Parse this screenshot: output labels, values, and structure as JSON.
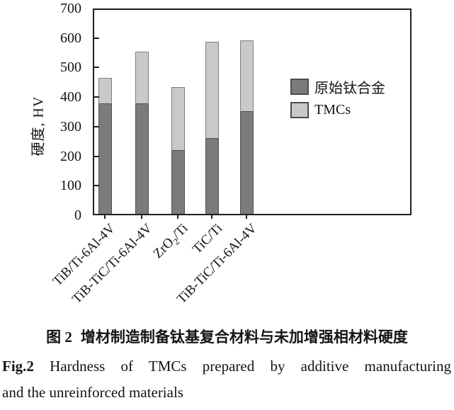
{
  "chart_data": {
    "type": "bar",
    "stacked": true,
    "ylabel": "硬度, HV",
    "ylim": [
      0,
      700
    ],
    "yticks": [
      0,
      100,
      200,
      300,
      400,
      500,
      600,
      700
    ],
    "grid": false,
    "legend_position": "middle-right",
    "categories": [
      "TiB/Ti-6Al-4V",
      "TiB-TiC/Ti-6Al-4V",
      "ZrO2/Ti",
      "TiC/Ti",
      "TiB-TiC/Ti-6Al-4V"
    ],
    "series": [
      {
        "name": "原始钛合金",
        "color": "#7b7b7b",
        "role": "unreinforced-matrix-hardness",
        "values": [
          380,
          380,
          220,
          262,
          353
        ]
      },
      {
        "name": "TMCs",
        "color": "#c9c9c9",
        "role": "composite-total-hardness",
        "values": [
          465,
          555,
          433,
          588,
          592
        ]
      }
    ]
  },
  "caption": {
    "zh_label": "图 2",
    "zh_text": "增材制造制备钛基复合材料与未加增强相材料硬度",
    "en_label": "Fig.2",
    "en_text": "Hardness of TMCs prepared by additive manufacturing",
    "en_text2": "and the unreinforced materials"
  },
  "colors": {
    "axis": "#1f1f1f",
    "bar_dark": "#7b7b7b",
    "bar_light": "#c9c9c9",
    "bar_border": "#4f4f4f",
    "text": "#141414"
  }
}
